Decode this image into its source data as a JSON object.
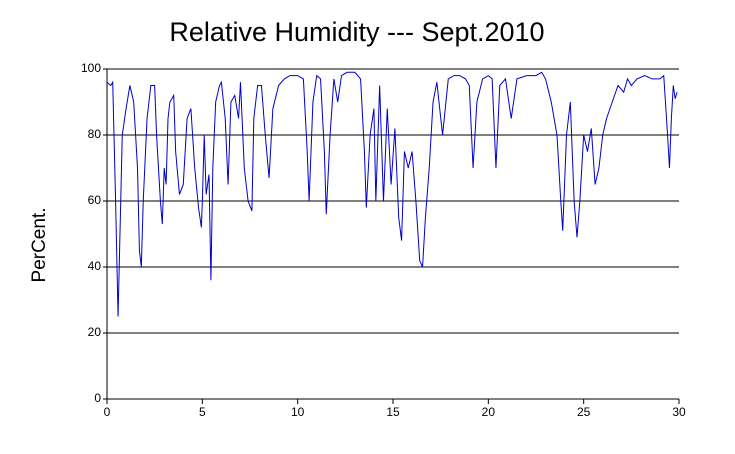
{
  "chart_data": {
    "type": "line",
    "title": "Relative Humidity --- Sept.2010",
    "y_label": "PerCent.",
    "x": [
      0,
      0.2,
      0.3,
      0.45,
      0.58,
      0.8,
      1.0,
      1.2,
      1.4,
      1.6,
      1.7,
      1.8,
      1.9,
      2.1,
      2.3,
      2.5,
      2.6,
      2.8,
      2.9,
      3.0,
      3.1,
      3.2,
      3.3,
      3.5,
      3.6,
      3.8,
      4.0,
      4.2,
      4.4,
      4.6,
      4.8,
      4.95,
      5.0,
      5.1,
      5.2,
      5.35,
      5.45,
      5.55,
      5.7,
      5.9,
      6.0,
      6.2,
      6.35,
      6.5,
      6.7,
      6.9,
      7.0,
      7.2,
      7.4,
      7.6,
      7.7,
      7.9,
      8.1,
      8.3,
      8.5,
      8.7,
      9.0,
      9.3,
      9.6,
      10.0,
      10.3,
      10.5,
      10.6,
      10.8,
      11.0,
      11.2,
      11.4,
      11.5,
      11.7,
      11.9,
      12.1,
      12.3,
      12.6,
      13.0,
      13.3,
      13.5,
      13.6,
      13.8,
      14.0,
      14.1,
      14.3,
      14.5,
      14.7,
      14.9,
      15.1,
      15.3,
      15.45,
      15.6,
      15.8,
      16.0,
      16.2,
      16.4,
      16.55,
      16.7,
      16.9,
      17.1,
      17.3,
      17.6,
      17.9,
      18.2,
      18.5,
      18.8,
      19.0,
      19.2,
      19.4,
      19.7,
      20.0,
      20.2,
      20.4,
      20.6,
      20.9,
      21.2,
      21.5,
      22.0,
      22.5,
      22.8,
      23.0,
      23.3,
      23.6,
      23.8,
      23.9,
      24.1,
      24.3,
      24.5,
      24.65,
      24.8,
      25.0,
      25.2,
      25.4,
      25.6,
      25.8,
      26.0,
      26.2,
      26.5,
      26.8,
      27.1,
      27.3,
      27.5,
      27.8,
      28.2,
      28.6,
      29.0,
      29.2,
      29.4,
      29.5,
      29.6,
      29.7,
      29.8,
      29.9
    ],
    "series": [
      {
        "name": "Relative Humidity",
        "color": "#0000cc",
        "values": [
          96,
          95,
          96,
          60,
          25,
          80,
          88,
          95,
          90,
          70,
          45,
          40,
          60,
          85,
          95,
          95,
          80,
          60,
          53,
          70,
          65,
          85,
          90,
          92,
          75,
          62,
          65,
          85,
          88,
          70,
          58,
          52,
          60,
          80,
          62,
          68,
          36,
          70,
          90,
          95,
          96,
          85,
          65,
          90,
          92,
          85,
          96,
          70,
          60,
          57,
          85,
          95,
          95,
          80,
          67,
          88,
          95,
          97,
          98,
          98,
          97,
          75,
          60,
          90,
          98,
          97,
          75,
          56,
          80,
          97,
          90,
          98,
          99,
          99,
          97,
          75,
          58,
          80,
          88,
          60,
          95,
          60,
          88,
          65,
          82,
          55,
          48,
          75,
          70,
          75,
          60,
          42,
          40,
          55,
          70,
          90,
          96,
          80,
          97,
          98,
          98,
          97,
          95,
          70,
          90,
          97,
          98,
          97,
          70,
          95,
          97,
          85,
          97,
          98,
          98,
          99,
          97,
          90,
          80,
          60,
          51,
          80,
          90,
          60,
          49,
          60,
          80,
          75,
          82,
          65,
          70,
          80,
          85,
          90,
          95,
          93,
          97,
          95,
          97,
          98,
          97,
          97,
          98,
          80,
          70,
          85,
          95,
          91,
          93
        ]
      }
    ],
    "xlim": [
      0,
      30
    ],
    "xticks": [
      0,
      5,
      10,
      15,
      20,
      25,
      30
    ],
    "ylim": [
      0,
      100
    ],
    "yticks": [
      0,
      20,
      40,
      60,
      80,
      100
    ],
    "grid": true
  }
}
